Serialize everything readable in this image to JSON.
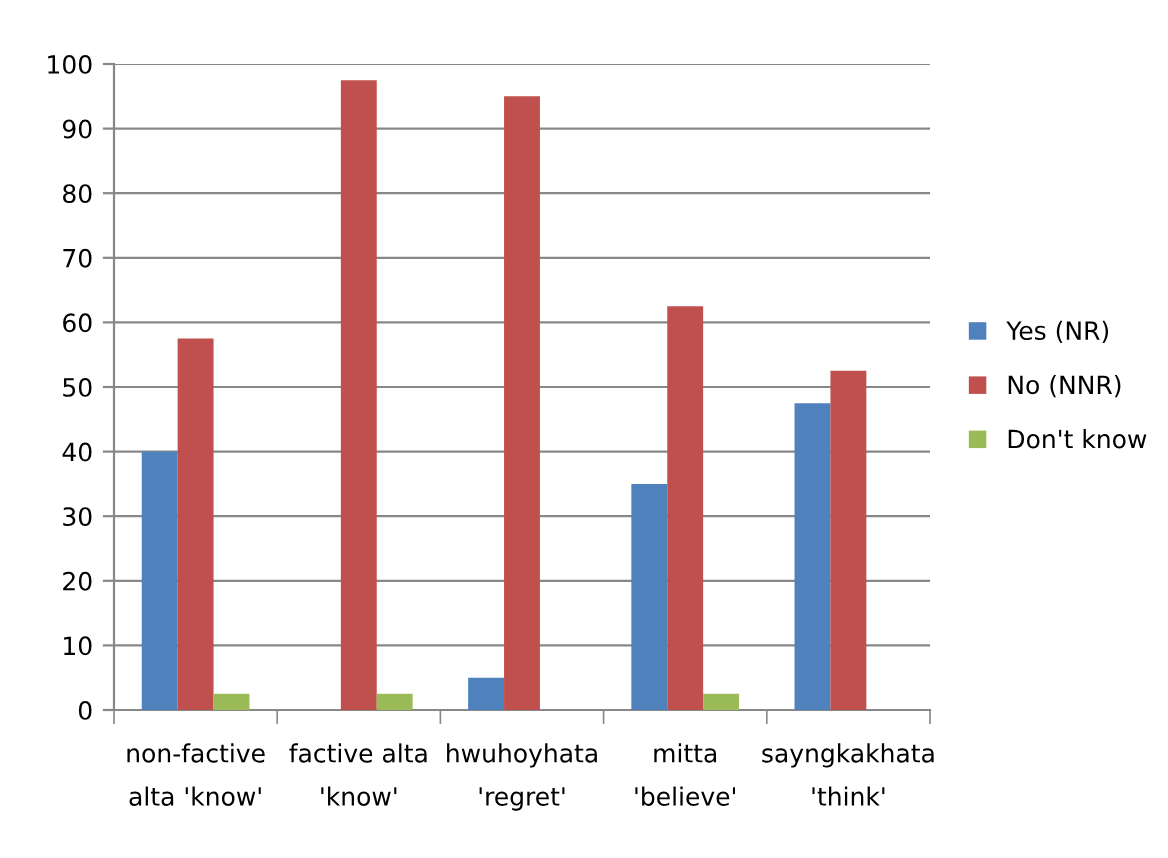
{
  "chart_data": {
    "type": "bar",
    "categories": [
      "non-factive\nalta 'know'",
      "factive alta\n'know'",
      "hwuhoyhata\n'regret'",
      "mitta\n'believe'",
      "sayngkakhata\n'think'"
    ],
    "series": [
      {
        "name": "Yes (NR)",
        "color": "#4f81bd",
        "values": [
          40,
          0,
          5,
          35,
          47.5
        ]
      },
      {
        "name": "No (NNR)",
        "color": "#c0504d",
        "values": [
          57.5,
          97.5,
          95,
          62.5,
          52.5
        ]
      },
      {
        "name": "Don't know",
        "color": "#9bbb59",
        "values": [
          2.5,
          2.5,
          0,
          2.5,
          0
        ]
      }
    ],
    "ylim": [
      0,
      100
    ],
    "yticks": [
      0,
      10,
      20,
      30,
      40,
      50,
      60,
      70,
      80,
      90,
      100
    ],
    "grid": "y",
    "legend": "right"
  }
}
